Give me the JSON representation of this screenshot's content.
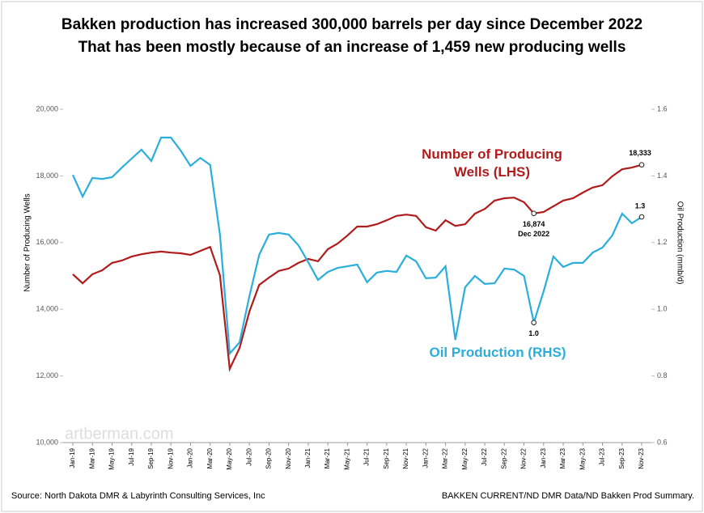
{
  "chart_data": {
    "type": "line",
    "title": "Bakken production has increased 300,000 barrels per day since December 2022",
    "subtitle": "That has been mostly because of an increase of 1,459 new producing wells",
    "y_label": "Number of Producing Wells",
    "y2_label": "Oil Production (mmb/d)",
    "source": "Source: North Dakota DMR & Labyrinth Consulting Services, Inc",
    "source_right": "BAKKEN CURRENT/ND DMR Data/ND Bakken Prod Summary.",
    "watermark": "artberman.com",
    "annotation": "Dec 2022",
    "categories": [
      "Jan-19",
      null,
      "Mar-19",
      null,
      "May-19",
      null,
      "Jul-19",
      null,
      "Sep-19",
      null,
      "Nov-19",
      null,
      "Jan-20",
      null,
      "Mar-20",
      null,
      "May-20",
      null,
      "Jul-20",
      null,
      "Sep-20",
      null,
      "Nov-20",
      null,
      "Jan-21",
      null,
      "Mar-21",
      null,
      "May-21",
      null,
      "Jul-21",
      null,
      "Sep-21",
      null,
      "Nov-21",
      null,
      "Jan-22",
      null,
      "Mar-22",
      null,
      "May-22",
      null,
      "Jul-22",
      null,
      "Sep-22",
      null,
      "Nov-22",
      null,
      "Jan-23",
      null,
      "Mar-23",
      null,
      "May-23",
      null,
      "Jul-23",
      null,
      "Sep-23",
      null,
      "Nov-23"
    ],
    "series": [
      {
        "name": "Number of Producing Wells (LHS)",
        "color": "#b01c1c",
        "axis": "y",
        "values": [
          15050,
          14780,
          15050,
          15170,
          15390,
          15460,
          15580,
          15650,
          15700,
          15730,
          15700,
          15680,
          15630,
          15750,
          15870,
          15020,
          12210,
          12840,
          13930,
          14730,
          14950,
          15150,
          15220,
          15390,
          15510,
          15440,
          15800,
          15970,
          16210,
          16480,
          16480,
          16550,
          16670,
          16800,
          16840,
          16800,
          16460,
          16360,
          16670,
          16500,
          16550,
          16870,
          17010,
          17260,
          17330,
          17350,
          17210,
          16874,
          16920,
          17090,
          17260,
          17330,
          17500,
          17650,
          17720,
          17990,
          18200,
          18250,
          18333
        ],
        "value_labels": [
          null,
          null,
          null,
          null,
          null,
          null,
          null,
          null,
          null,
          null,
          null,
          null,
          null,
          null,
          null,
          null,
          null,
          null,
          null,
          null,
          null,
          null,
          null,
          null,
          null,
          null,
          null,
          null,
          null,
          null,
          null,
          null,
          null,
          null,
          null,
          null,
          null,
          null,
          null,
          null,
          null,
          null,
          null,
          null,
          null,
          null,
          null,
          "16,874",
          null,
          null,
          null,
          null,
          null,
          null,
          null,
          null,
          null,
          null,
          "18,333"
        ]
      },
      {
        "name": "Oil Production (RHS)",
        "color": "#2aaedc",
        "axis": "y2",
        "values": [
          1.403,
          1.338,
          1.394,
          1.391,
          1.396,
          1.425,
          1.452,
          1.479,
          1.445,
          1.515,
          1.515,
          1.476,
          1.43,
          1.454,
          1.433,
          1.224,
          0.867,
          0.901,
          1.039,
          1.163,
          1.224,
          1.229,
          1.224,
          1.192,
          1.141,
          1.088,
          1.112,
          1.124,
          1.129,
          1.134,
          1.081,
          1.11,
          1.115,
          1.112,
          1.161,
          1.144,
          1.093,
          1.095,
          1.129,
          0.908,
          1.066,
          1.1,
          1.076,
          1.078,
          1.122,
          1.119,
          1.1,
          0.96,
          1.054,
          1.158,
          1.127,
          1.139,
          1.139,
          1.17,
          1.185,
          1.221,
          1.287,
          1.258,
          1.277
        ],
        "value_labels": [
          null,
          null,
          null,
          null,
          null,
          null,
          null,
          null,
          null,
          null,
          null,
          null,
          null,
          null,
          null,
          null,
          null,
          null,
          null,
          null,
          null,
          null,
          null,
          null,
          null,
          null,
          null,
          null,
          null,
          null,
          null,
          null,
          null,
          null,
          null,
          null,
          null,
          null,
          null,
          null,
          null,
          null,
          null,
          null,
          null,
          null,
          null,
          "1.0",
          null,
          null,
          null,
          null,
          null,
          null,
          null,
          null,
          null,
          null,
          "1.3"
        ]
      }
    ],
    "ylim": [
      10000,
      20000
    ],
    "yticks": [
      {
        "value": 10000,
        "label": "10,000"
      },
      {
        "value": 12000,
        "label": "12,000"
      },
      {
        "value": 14000,
        "label": "14,000"
      },
      {
        "value": 16000,
        "label": "16,000"
      },
      {
        "value": 18000,
        "label": "18,000"
      },
      {
        "value": 20000,
        "label": "20,000"
      }
    ],
    "y2lim": [
      0.6,
      1.6
    ],
    "y2ticks": [
      0.6,
      0.8,
      {
        "value": 1,
        "label": "1.0"
      },
      1.2,
      1.4,
      1.6
    ],
    "grid": false
  }
}
